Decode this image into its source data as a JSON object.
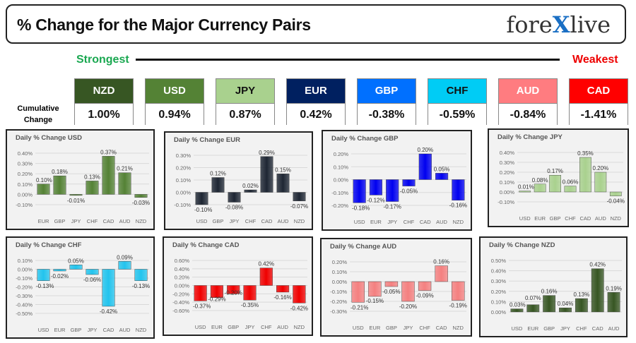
{
  "header": {
    "title": "% Change for the Major Currency Pairs",
    "logo": "forexlive",
    "strongest": "Strongest",
    "weakest": "Weakest",
    "cumulative_label": "Cumulative Change"
  },
  "ranking": [
    {
      "currency": "NZD",
      "value": "1.00%",
      "color": "#375623",
      "text": "#fff"
    },
    {
      "currency": "USD",
      "value": "0.94%",
      "color": "#548235",
      "text": "#fff"
    },
    {
      "currency": "JPY",
      "value": "0.87%",
      "color": "#a9d18e",
      "text": "#111"
    },
    {
      "currency": "EUR",
      "value": "0.42%",
      "color": "#002060",
      "text": "#fff"
    },
    {
      "currency": "GBP",
      "value": "-0.38%",
      "color": "#0070ff",
      "text": "#fff"
    },
    {
      "currency": "CHF",
      "value": "-0.59%",
      "color": "#00ccf5",
      "text": "#111"
    },
    {
      "currency": "AUD",
      "value": "-0.84%",
      "color": "#ff7c80",
      "text": "#fff"
    },
    {
      "currency": "CAD",
      "value": "-1.41%",
      "color": "#ff0000",
      "text": "#fff"
    }
  ],
  "chart_data": [
    {
      "type": "bar",
      "title": "Daily % Change USD",
      "color": "#548235",
      "categories": [
        "EUR",
        "GBP",
        "JPY",
        "CHF",
        "CAD",
        "AUD",
        "NZD"
      ],
      "values": [
        0.1,
        0.18,
        -0.01,
        0.13,
        0.37,
        0.21,
        -0.03
      ],
      "ylim": [
        -0.1,
        0.4
      ],
      "ystep": 0.1,
      "grid": true
    },
    {
      "type": "bar",
      "title": "Daily % Change EUR",
      "color": "#1e2633",
      "categories": [
        "USD",
        "GBP",
        "JPY",
        "CHF",
        "CAD",
        "AUD",
        "NZD"
      ],
      "values": [
        -0.1,
        0.12,
        -0.08,
        0.02,
        0.29,
        0.15,
        -0.07
      ],
      "ylim": [
        -0.1,
        0.3
      ],
      "ystep": 0.1,
      "grid": true
    },
    {
      "type": "bar",
      "title": "Daily % Change GBP",
      "color": "#0000f0",
      "categories": [
        "USD",
        "EUR",
        "JPY",
        "CHF",
        "CAD",
        "AUD",
        "NZD"
      ],
      "values": [
        -0.18,
        -0.12,
        -0.17,
        -0.05,
        0.2,
        0.05,
        -0.16
      ],
      "ylim": [
        -0.2,
        0.2
      ],
      "ystep": 0.1,
      "grid": true
    },
    {
      "type": "bar",
      "title": "Daily % Change JPY",
      "color": "#a9d18e",
      "categories": [
        "USD",
        "EUR",
        "GBP",
        "CHF",
        "CAD",
        "AUD",
        "NZD"
      ],
      "values": [
        0.01,
        0.08,
        0.17,
        0.06,
        0.35,
        0.2,
        -0.04
      ],
      "ylim": [
        -0.1,
        0.4
      ],
      "ystep": 0.1,
      "grid": true
    },
    {
      "type": "bar",
      "title": "Daily % Change CHF",
      "color": "#22c4ee",
      "categories": [
        "USD",
        "EUR",
        "GBP",
        "JPY",
        "CAD",
        "AUD",
        "NZD"
      ],
      "values": [
        -0.13,
        -0.02,
        0.05,
        -0.06,
        -0.42,
        0.09,
        -0.13
      ],
      "ylim": [
        -0.5,
        0.1
      ],
      "ystep": 0.1,
      "grid": true
    },
    {
      "type": "bar",
      "title": "Daily % Change CAD",
      "color": "#f00000",
      "categories": [
        "USD",
        "EUR",
        "GBP",
        "JPY",
        "CHF",
        "AUD",
        "NZD"
      ],
      "values": [
        -0.37,
        -0.29,
        -0.2,
        -0.35,
        0.42,
        -0.16,
        -0.42
      ],
      "ylim": [
        -0.6,
        0.6
      ],
      "ystep": 0.2,
      "grid": true
    },
    {
      "type": "bar",
      "title": "Daily % Change AUD",
      "color": "#f48080",
      "categories": [
        "USD",
        "EUR",
        "GBP",
        "JPY",
        "CHF",
        "CAD",
        "NZD"
      ],
      "values": [
        -0.21,
        -0.15,
        -0.05,
        -0.2,
        -0.09,
        0.16,
        -0.19
      ],
      "ylim": [
        -0.3,
        0.2
      ],
      "ystep": 0.1,
      "grid": true
    },
    {
      "type": "bar",
      "title": "Daily % Change NZD",
      "color": "#375623",
      "categories": [
        "USD",
        "EUR",
        "GBP",
        "JPY",
        "CHF",
        "CAD",
        "AUD"
      ],
      "values": [
        0.03,
        0.07,
        0.16,
        0.04,
        0.13,
        0.42,
        0.19
      ],
      "ylim": [
        0.0,
        0.5
      ],
      "ystep": 0.1,
      "grid": true
    }
  ]
}
